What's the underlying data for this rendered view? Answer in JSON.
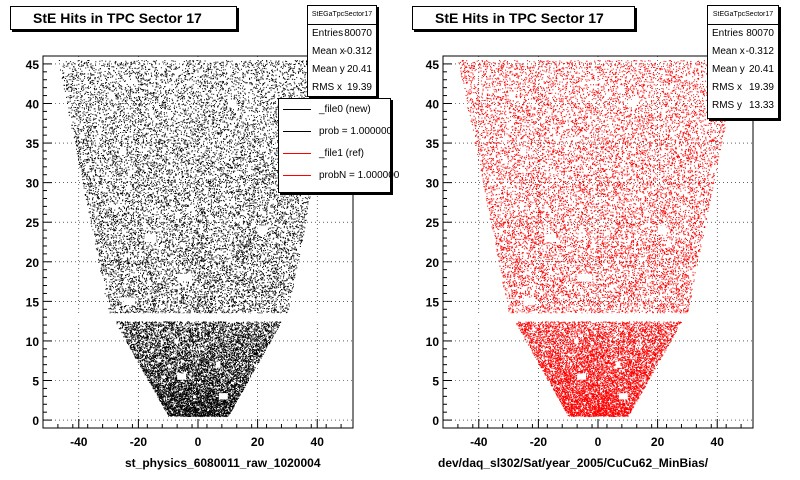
{
  "panels": [
    {
      "id": "left",
      "title": "StE Hits in TPC Sector 17",
      "stats": {
        "name": "StEGaTpcSector17",
        "rows": [
          {
            "label": "Entries",
            "value": "80070"
          },
          {
            "label": "Mean x",
            "value": "-0.312"
          },
          {
            "label": "Mean y",
            "value": "20.41"
          },
          {
            "label": "RMS x",
            "value": "19.39"
          }
        ]
      },
      "legend": [
        {
          "label": "_file0 (new)",
          "color": "#000000"
        },
        {
          "label": "prob = 1.000000",
          "color": "#000000"
        },
        {
          "label": "_file1 (ref)",
          "color": "#ff0000"
        },
        {
          "label": "probN = 1.000000",
          "color": "#ff0000"
        }
      ],
      "xlabel": "st_physics_6080011_raw_1020004",
      "marker_color": "#000000"
    },
    {
      "id": "right",
      "title": "StE Hits in TPC Sector 17",
      "stats": {
        "name": "StEGaTpcSector17",
        "rows": [
          {
            "label": "Entries",
            "value": "80070"
          },
          {
            "label": "Mean x",
            "value": "-0.312"
          },
          {
            "label": "Mean y",
            "value": "20.41"
          },
          {
            "label": "RMS x",
            "value": "19.39"
          },
          {
            "label": "RMS y",
            "value": "13.33"
          }
        ]
      },
      "xlabel": "dev/daq_sl302/Sat/year_2005/CuCu62_MinBias/",
      "marker_color": "#ff0000"
    }
  ],
  "chart_data": [
    {
      "type": "scatter",
      "title": "StE Hits in TPC Sector 17",
      "xlabel": "st_physics_6080011_raw_1020004",
      "ylabel": "",
      "xlim": [
        -52,
        52
      ],
      "ylim": [
        -1,
        46
      ],
      "xticks": [
        -40,
        -20,
        0,
        20,
        40
      ],
      "yticks": [
        0,
        5,
        10,
        15,
        20,
        25,
        30,
        35,
        40,
        45
      ],
      "grid": true,
      "entries": 80070,
      "mean_x": -0.312,
      "mean_y": 20.41,
      "rms_x": 19.39,
      "outer_region": {
        "y_range": [
          13.5,
          45.5
        ],
        "x_half_width_at_y_min": 30,
        "x_half_width_at_y_max": 47
      },
      "inner_region": {
        "y_range": [
          0.5,
          12.5
        ],
        "x_half_width_at_y_min": 10,
        "x_half_width_at_y_max": 28
      },
      "series": [
        {
          "name": "_file0 (new)",
          "color": "#000000"
        },
        {
          "name": "_file1 (ref)",
          "color": "#ff0000"
        }
      ]
    },
    {
      "type": "scatter",
      "title": "StE Hits in TPC Sector 17",
      "xlabel": "dev/daq_sl302/Sat/year_2005/CuCu62_MinBias/",
      "ylabel": "",
      "xlim": [
        -52,
        52
      ],
      "ylim": [
        -1,
        46
      ],
      "xticks": [
        -40,
        -20,
        0,
        20,
        40
      ],
      "yticks": [
        0,
        5,
        10,
        15,
        20,
        25,
        30,
        35,
        40,
        45
      ],
      "grid": true,
      "entries": 80070,
      "mean_x": -0.312,
      "mean_y": 20.41,
      "rms_x": 19.39,
      "rms_y": 13.33,
      "outer_region": {
        "y_range": [
          13.5,
          45.5
        ],
        "x_half_width_at_y_min": 30,
        "x_half_width_at_y_max": 47
      },
      "inner_region": {
        "y_range": [
          0.5,
          12.5
        ],
        "x_half_width_at_y_min": 10,
        "x_half_width_at_y_max": 28
      },
      "series": [
        {
          "name": "_file1 (ref)",
          "color": "#ff0000"
        }
      ]
    }
  ]
}
